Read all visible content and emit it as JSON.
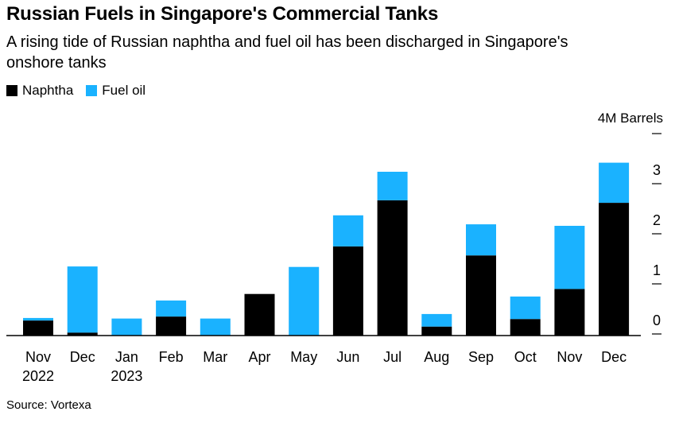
{
  "chart_data": {
    "type": "bar",
    "stacked": true,
    "title": "Russian Fuels in Singapore's Commercial Tanks",
    "subtitle": "A rising tide of Russian naphtha and fuel oil has been discharged in Singapore's onshore tanks",
    "unit_label": "4M Barrels",
    "y_ticks": [
      "0",
      "1",
      "2",
      "3"
    ],
    "ylim": [
      0,
      4
    ],
    "categories": [
      "Nov",
      "Dec",
      "Jan",
      "Feb",
      "Mar",
      "Apr",
      "May",
      "Jun",
      "Jul",
      "Aug",
      "Sep",
      "Oct",
      "Nov",
      "Dec"
    ],
    "year_labels": [
      "2022",
      "",
      "2023",
      "",
      "",
      "",
      "",
      "",
      "",
      "",
      "",
      "",
      "",
      ""
    ],
    "series": [
      {
        "name": "Naphtha",
        "color": "#000000",
        "values": [
          0.3,
          0.06,
          0.0,
          0.38,
          0.0,
          0.83,
          0.0,
          1.78,
          2.7,
          0.18,
          1.6,
          0.33,
          0.93,
          2.65
        ]
      },
      {
        "name": "Fuel oil",
        "color": "#1ab2ff",
        "values": [
          0.05,
          1.32,
          0.34,
          0.32,
          0.34,
          0.0,
          1.37,
          0.62,
          0.57,
          0.25,
          0.62,
          0.45,
          1.26,
          0.8
        ]
      }
    ],
    "legend_position": "top-left",
    "grid": false,
    "source": "Source: Vortexa"
  }
}
